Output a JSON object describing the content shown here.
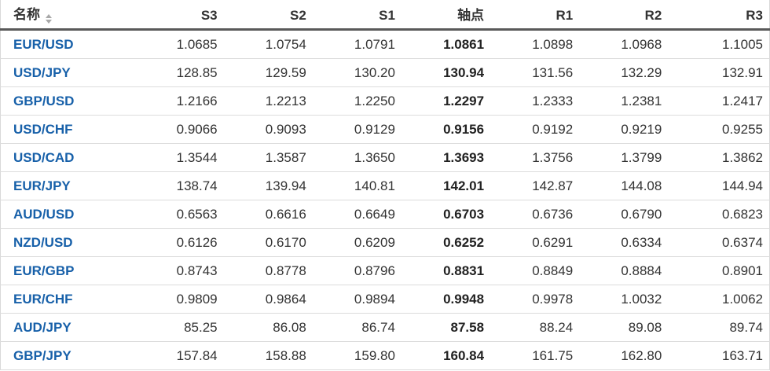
{
  "colors": {
    "pair_link": "#1760a9",
    "header_text": "#333333",
    "value_text": "#333333",
    "pivot_text": "#222222",
    "header_border": "#595959",
    "row_border": "#dcdcdc",
    "sort_icon": "#a8a8a8"
  },
  "icons": {
    "sort": "up-down-triangles"
  },
  "table": {
    "name_header": "名称",
    "value_headers": [
      "S3",
      "S2",
      "S1",
      "轴点",
      "R1",
      "R2",
      "R3"
    ],
    "pivot_column_index": 3,
    "rows": [
      {
        "pair": "EUR/USD",
        "values": [
          "1.0685",
          "1.0754",
          "1.0791",
          "1.0861",
          "1.0898",
          "1.0968",
          "1.1005"
        ]
      },
      {
        "pair": "USD/JPY",
        "values": [
          "128.85",
          "129.59",
          "130.20",
          "130.94",
          "131.56",
          "132.29",
          "132.91"
        ]
      },
      {
        "pair": "GBP/USD",
        "values": [
          "1.2166",
          "1.2213",
          "1.2250",
          "1.2297",
          "1.2333",
          "1.2381",
          "1.2417"
        ]
      },
      {
        "pair": "USD/CHF",
        "values": [
          "0.9066",
          "0.9093",
          "0.9129",
          "0.9156",
          "0.9192",
          "0.9219",
          "0.9255"
        ]
      },
      {
        "pair": "USD/CAD",
        "values": [
          "1.3544",
          "1.3587",
          "1.3650",
          "1.3693",
          "1.3756",
          "1.3799",
          "1.3862"
        ]
      },
      {
        "pair": "EUR/JPY",
        "values": [
          "138.74",
          "139.94",
          "140.81",
          "142.01",
          "142.87",
          "144.08",
          "144.94"
        ]
      },
      {
        "pair": "AUD/USD",
        "values": [
          "0.6563",
          "0.6616",
          "0.6649",
          "0.6703",
          "0.6736",
          "0.6790",
          "0.6823"
        ]
      },
      {
        "pair": "NZD/USD",
        "values": [
          "0.6126",
          "0.6170",
          "0.6209",
          "0.6252",
          "0.6291",
          "0.6334",
          "0.6374"
        ]
      },
      {
        "pair": "EUR/GBP",
        "values": [
          "0.8743",
          "0.8778",
          "0.8796",
          "0.8831",
          "0.8849",
          "0.8884",
          "0.8901"
        ]
      },
      {
        "pair": "EUR/CHF",
        "values": [
          "0.9809",
          "0.9864",
          "0.9894",
          "0.9948",
          "0.9978",
          "1.0032",
          "1.0062"
        ]
      },
      {
        "pair": "AUD/JPY",
        "values": [
          "85.25",
          "86.08",
          "86.74",
          "87.58",
          "88.24",
          "89.08",
          "89.74"
        ]
      },
      {
        "pair": "GBP/JPY",
        "values": [
          "157.84",
          "158.88",
          "159.80",
          "160.84",
          "161.75",
          "162.80",
          "163.71"
        ]
      }
    ]
  }
}
